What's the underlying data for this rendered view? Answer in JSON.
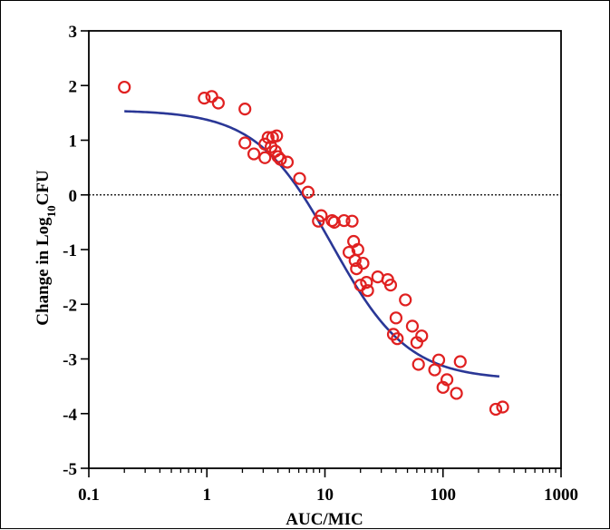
{
  "chart_data": {
    "type": "scatter",
    "xlabel": "AUC/MIC",
    "ylabel_main": "Change in Log",
    "ylabel_sub": "10",
    "ylabel_tail": "CFU",
    "x_scale": "log",
    "xlim": [
      0.1,
      1000
    ],
    "ylim": [
      -5,
      3
    ],
    "x_ticks": [
      0.1,
      1,
      10,
      100,
      1000
    ],
    "x_tick_labels": [
      "0.1",
      "1",
      "10",
      "100",
      "1000"
    ],
    "y_ticks": [
      -5,
      -4,
      -3,
      -2,
      -1,
      0,
      1,
      2,
      3
    ],
    "y_tick_labels": [
      "-5",
      "-4",
      "-3",
      "-2",
      "-1",
      "0",
      "1",
      "2",
      "3"
    ],
    "reference_line_y": 0,
    "grid": false,
    "series": [
      {
        "kind": "points",
        "color": "#e02020",
        "marker": "open-circle",
        "points": [
          [
            0.2,
            1.97
          ],
          [
            0.95,
            1.77
          ],
          [
            1.1,
            1.8
          ],
          [
            1.25,
            1.68
          ],
          [
            2.1,
            1.57
          ],
          [
            2.1,
            0.95
          ],
          [
            2.5,
            0.75
          ],
          [
            3.1,
            0.93
          ],
          [
            3.1,
            0.68
          ],
          [
            3.3,
            1.05
          ],
          [
            3.5,
            0.88
          ],
          [
            3.6,
            1.05
          ],
          [
            3.8,
            0.8
          ],
          [
            3.9,
            1.08
          ],
          [
            4.0,
            0.7
          ],
          [
            4.2,
            0.65
          ],
          [
            4.8,
            0.6
          ],
          [
            6.1,
            0.3
          ],
          [
            7.2,
            0.05
          ],
          [
            8.8,
            -0.48
          ],
          [
            9.3,
            -0.38
          ],
          [
            11.5,
            -0.47
          ],
          [
            12.0,
            -0.5
          ],
          [
            14.5,
            -0.47
          ],
          [
            16.0,
            -1.05
          ],
          [
            17.0,
            -0.48
          ],
          [
            17.5,
            -0.85
          ],
          [
            18.0,
            -1.2
          ],
          [
            18.5,
            -1.35
          ],
          [
            19.0,
            -1.0
          ],
          [
            20.0,
            -1.65
          ],
          [
            21.0,
            -1.25
          ],
          [
            22.5,
            -1.6
          ],
          [
            23.0,
            -1.75
          ],
          [
            28.0,
            -1.5
          ],
          [
            34.0,
            -1.55
          ],
          [
            36.0,
            -1.65
          ],
          [
            38.0,
            -2.55
          ],
          [
            40.0,
            -2.25
          ],
          [
            41.0,
            -2.63
          ],
          [
            48.0,
            -1.92
          ],
          [
            55.0,
            -2.4
          ],
          [
            60.0,
            -2.7
          ],
          [
            62.0,
            -3.1
          ],
          [
            66.0,
            -2.58
          ],
          [
            85.0,
            -3.2
          ],
          [
            92.0,
            -3.02
          ],
          [
            100.0,
            -3.52
          ],
          [
            108.0,
            -3.38
          ],
          [
            130.0,
            -3.63
          ],
          [
            140.0,
            -3.05
          ],
          [
            280.0,
            -3.92
          ],
          [
            320.0,
            -3.88
          ]
        ]
      },
      {
        "kind": "curve",
        "color": "#2a3796",
        "model": "sigmoid-emax",
        "params": {
          "top": 1.55,
          "bottom": -3.38,
          "ec50": 11.5,
          "hill": 1.35
        },
        "x_range": [
          0.2,
          300
        ]
      }
    ]
  }
}
